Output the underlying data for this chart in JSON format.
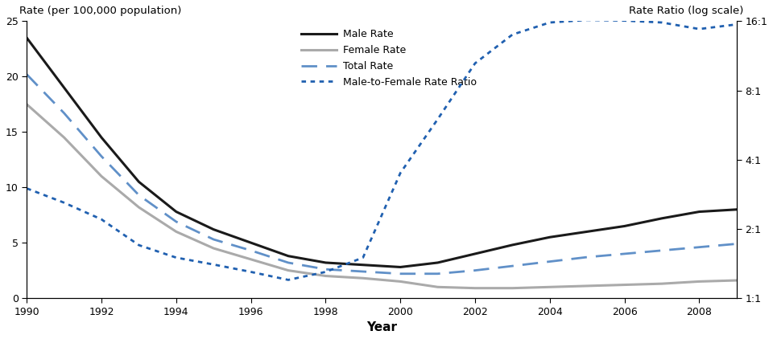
{
  "years": [
    1990,
    1991,
    1992,
    1993,
    1994,
    1995,
    1996,
    1997,
    1998,
    1999,
    2000,
    2001,
    2002,
    2003,
    2004,
    2005,
    2006,
    2007,
    2008,
    2009
  ],
  "male_rate": [
    23.5,
    19.0,
    14.5,
    10.5,
    7.8,
    6.2,
    5.0,
    3.8,
    3.2,
    3.0,
    2.8,
    3.2,
    4.0,
    4.8,
    5.5,
    6.0,
    6.5,
    7.2,
    7.8,
    8.0
  ],
  "female_rate": [
    17.5,
    14.5,
    11.0,
    8.2,
    6.0,
    4.5,
    3.5,
    2.5,
    2.0,
    1.8,
    1.5,
    1.0,
    0.9,
    0.9,
    1.0,
    1.1,
    1.2,
    1.3,
    1.5,
    1.6
  ],
  "total_rate": [
    20.2,
    16.7,
    12.8,
    9.3,
    6.9,
    5.3,
    4.3,
    3.2,
    2.6,
    2.4,
    2.2,
    2.2,
    2.5,
    2.9,
    3.3,
    3.7,
    4.0,
    4.3,
    4.6,
    4.9
  ],
  "rate_ratio": [
    3.0,
    2.6,
    2.2,
    1.7,
    1.5,
    1.4,
    1.3,
    1.2,
    1.3,
    1.5,
    3.5,
    6.0,
    10.5,
    14.0,
    15.8,
    16.2,
    16.1,
    15.8,
    14.8,
    15.5
  ],
  "left_ylabel": "Rate (per 100,000 population)",
  "right_ylabel": "Rate Ratio (log scale)",
  "xlabel": "Year",
  "ylim_left": [
    0,
    25
  ],
  "yticks_left": [
    0,
    5,
    10,
    15,
    20,
    25
  ],
  "right_yticks": [
    1,
    2,
    4,
    8,
    16
  ],
  "right_yticklabels": [
    "1:1",
    "2:1",
    "4:1",
    "8:1",
    "16:1"
  ],
  "xlim": [
    1990,
    2009
  ],
  "xticks": [
    1990,
    1992,
    1994,
    1996,
    1998,
    2000,
    2002,
    2004,
    2006,
    2008
  ],
  "male_color": "#1a1a1a",
  "female_color": "#aaaaaa",
  "total_color": "#6090c8",
  "ratio_color": "#2060b0",
  "legend_labels": [
    "Male Rate",
    "Female Rate",
    "Total Rate",
    "Male-to-Female Rate Ratio"
  ]
}
